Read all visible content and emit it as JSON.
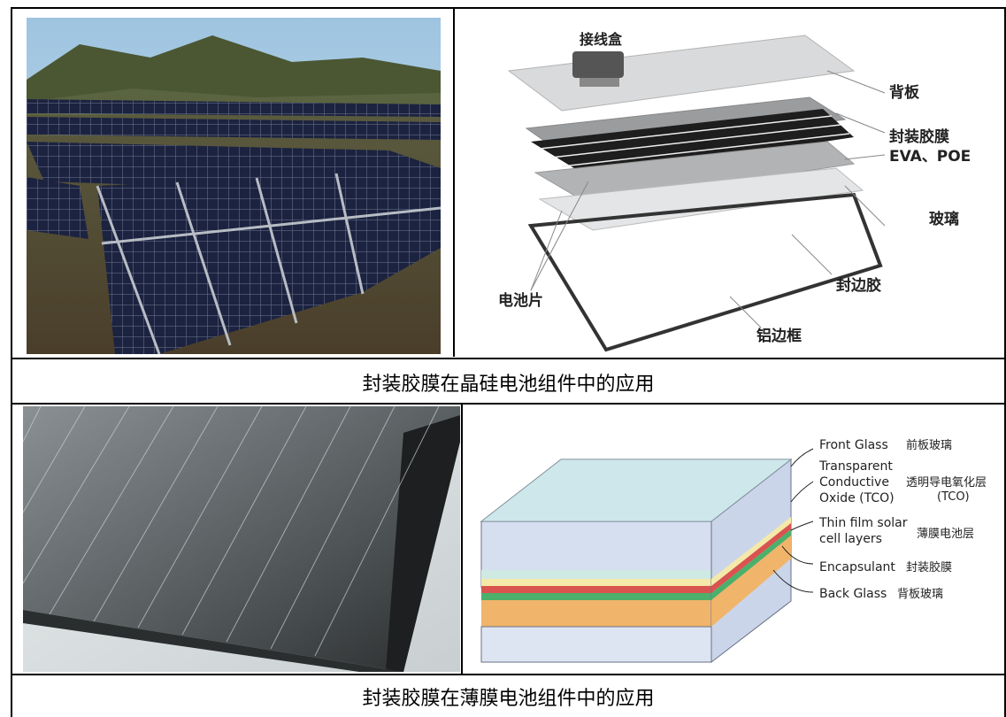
{
  "top_section": {
    "photo_alt": "solar panel field",
    "diagram": {
      "labels": {
        "junction_box": "接线盒",
        "backsheet": "背板",
        "encapsulant_film": "封装胶膜",
        "encapsulant_types": "EVA、POE",
        "glass": "玻璃",
        "cells": "电池片",
        "edge_sealant": "封边胶",
        "aluminum_frame": "铝边框"
      }
    },
    "caption": "封装胶膜在晶硅电池组件中的应用"
  },
  "bottom_section": {
    "diagram": {
      "labels": {
        "front_glass_en": "Front Glass",
        "front_glass_zh": "前板玻璃",
        "tco_en_1": "Transparent",
        "tco_en_2": "Conductive",
        "tco_en_3": "Oxide (TCO)",
        "tco_zh_1": "透明导电氧化层",
        "tco_zh_2": "(TCO)",
        "thin_film_en_1": "Thin film solar",
        "thin_film_en_2": "cell layers",
        "thin_film_zh": "薄膜电池层",
        "encapsulant_en": "Encapsulant",
        "encapsulant_zh": "封装胶膜",
        "back_glass_en": "Back Glass",
        "back_glass_zh": "背板玻璃"
      }
    },
    "caption": "封装胶膜在薄膜电池组件中的应用"
  }
}
